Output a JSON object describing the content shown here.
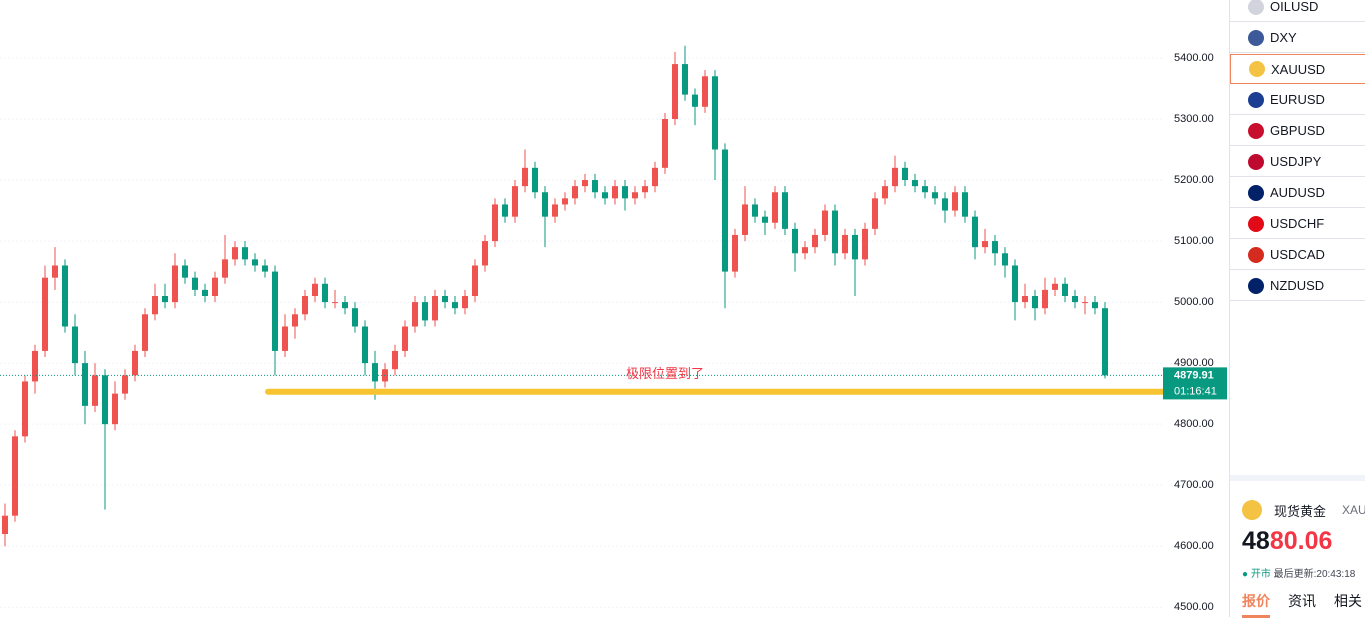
{
  "chart_data": {
    "type": "candlestick",
    "ylim": [
      4484,
      5495
    ],
    "yticks": [
      {
        "value": 4500,
        "label": "4500.00"
      },
      {
        "value": 4600,
        "label": "4600.00"
      },
      {
        "value": 4700,
        "label": "4700.00"
      },
      {
        "value": 4800,
        "label": "4800.00"
      },
      {
        "value": 4900,
        "label": "4900.00"
      },
      {
        "value": 5000,
        "label": "5000.00"
      },
      {
        "value": 5100,
        "label": "5100.00"
      },
      {
        "value": 5200,
        "label": "5200.00"
      },
      {
        "value": 5300,
        "label": "5300.00"
      },
      {
        "value": 5400,
        "label": "5400.00"
      }
    ],
    "grid": true,
    "up_color": "#ef5350",
    "down_color": "#089981",
    "ohlc": [
      [
        4620,
        4670,
        4600,
        4650
      ],
      [
        4650,
        4790,
        4640,
        4780
      ],
      [
        4780,
        4880,
        4770,
        4870
      ],
      [
        4870,
        4930,
        4850,
        4920
      ],
      [
        4920,
        5060,
        4910,
        5040
      ],
      [
        5040,
        5090,
        5020,
        5060
      ],
      [
        5060,
        5070,
        4950,
        4960
      ],
      [
        4960,
        4980,
        4880,
        4900
      ],
      [
        4900,
        4920,
        4800,
        4830
      ],
      [
        4830,
        4900,
        4820,
        4880
      ],
      [
        4880,
        4890,
        4660,
        4800
      ],
      [
        4800,
        4870,
        4790,
        4850
      ],
      [
        4850,
        4890,
        4840,
        4880
      ],
      [
        4880,
        4930,
        4870,
        4920
      ],
      [
        4920,
        4990,
        4910,
        4980
      ],
      [
        4980,
        5030,
        4970,
        5010
      ],
      [
        5010,
        5030,
        4990,
        5000
      ],
      [
        5000,
        5080,
        4990,
        5060
      ],
      [
        5060,
        5070,
        5030,
        5040
      ],
      [
        5040,
        5050,
        5010,
        5020
      ],
      [
        5020,
        5030,
        5000,
        5010
      ],
      [
        5010,
        5050,
        5000,
        5040
      ],
      [
        5040,
        5110,
        5030,
        5070
      ],
      [
        5070,
        5100,
        5060,
        5090
      ],
      [
        5090,
        5100,
        5060,
        5070
      ],
      [
        5070,
        5080,
        5050,
        5060
      ],
      [
        5060,
        5070,
        5040,
        5050
      ],
      [
        5050,
        5060,
        4880,
        4920
      ],
      [
        4920,
        4980,
        4910,
        4960
      ],
      [
        4960,
        4990,
        4940,
        4980
      ],
      [
        4980,
        5020,
        4970,
        5010
      ],
      [
        5010,
        5040,
        5000,
        5030
      ],
      [
        5030,
        5040,
        4990,
        5000
      ],
      [
        5000,
        5020,
        4990,
        5000
      ],
      [
        5000,
        5010,
        4980,
        4990
      ],
      [
        4990,
        5000,
        4950,
        4960
      ],
      [
        4960,
        4970,
        4880,
        4900
      ],
      [
        4900,
        4920,
        4840,
        4870
      ],
      [
        4870,
        4900,
        4860,
        4890
      ],
      [
        4890,
        4930,
        4880,
        4920
      ],
      [
        4920,
        4970,
        4910,
        4960
      ],
      [
        4960,
        5010,
        4950,
        5000
      ],
      [
        5000,
        5010,
        4960,
        4970
      ],
      [
        4970,
        5020,
        4960,
        5010
      ],
      [
        5010,
        5020,
        4990,
        5000
      ],
      [
        5000,
        5010,
        4980,
        4990
      ],
      [
        4990,
        5020,
        4980,
        5010
      ],
      [
        5010,
        5070,
        5000,
        5060
      ],
      [
        5060,
        5110,
        5050,
        5100
      ],
      [
        5100,
        5170,
        5090,
        5160
      ],
      [
        5160,
        5170,
        5130,
        5140
      ],
      [
        5140,
        5200,
        5130,
        5190
      ],
      [
        5190,
        5250,
        5180,
        5220
      ],
      [
        5220,
        5230,
        5170,
        5180
      ],
      [
        5180,
        5190,
        5090,
        5140
      ],
      [
        5140,
        5170,
        5130,
        5160
      ],
      [
        5160,
        5180,
        5150,
        5170
      ],
      [
        5170,
        5200,
        5160,
        5190
      ],
      [
        5190,
        5210,
        5180,
        5200
      ],
      [
        5200,
        5210,
        5170,
        5180
      ],
      [
        5180,
        5190,
        5160,
        5170
      ],
      [
        5170,
        5200,
        5160,
        5190
      ],
      [
        5190,
        5200,
        5150,
        5170
      ],
      [
        5170,
        5190,
        5160,
        5180
      ],
      [
        5180,
        5200,
        5170,
        5190
      ],
      [
        5190,
        5230,
        5180,
        5220
      ],
      [
        5220,
        5310,
        5210,
        5300
      ],
      [
        5300,
        5410,
        5290,
        5390
      ],
      [
        5390,
        5420,
        5330,
        5340
      ],
      [
        5340,
        5350,
        5290,
        5320
      ],
      [
        5320,
        5380,
        5310,
        5370
      ],
      [
        5370,
        5380,
        5200,
        5250
      ],
      [
        5250,
        5260,
        4990,
        5050
      ],
      [
        5050,
        5120,
        5040,
        5110
      ],
      [
        5110,
        5190,
        5100,
        5160
      ],
      [
        5160,
        5170,
        5130,
        5140
      ],
      [
        5140,
        5150,
        5110,
        5130
      ],
      [
        5130,
        5190,
        5120,
        5180
      ],
      [
        5180,
        5190,
        5110,
        5120
      ],
      [
        5120,
        5130,
        5050,
        5080
      ],
      [
        5080,
        5100,
        5070,
        5090
      ],
      [
        5090,
        5120,
        5080,
        5110
      ],
      [
        5110,
        5160,
        5100,
        5150
      ],
      [
        5150,
        5160,
        5060,
        5080
      ],
      [
        5080,
        5120,
        5070,
        5110
      ],
      [
        5110,
        5120,
        5010,
        5070
      ],
      [
        5070,
        5130,
        5060,
        5120
      ],
      [
        5120,
        5180,
        5110,
        5170
      ],
      [
        5170,
        5200,
        5160,
        5190
      ],
      [
        5190,
        5240,
        5180,
        5220
      ],
      [
        5220,
        5230,
        5190,
        5200
      ],
      [
        5200,
        5210,
        5180,
        5190
      ],
      [
        5190,
        5200,
        5170,
        5180
      ],
      [
        5180,
        5190,
        5160,
        5170
      ],
      [
        5170,
        5180,
        5130,
        5150
      ],
      [
        5150,
        5190,
        5140,
        5180
      ],
      [
        5180,
        5190,
        5130,
        5140
      ],
      [
        5140,
        5150,
        5070,
        5090
      ],
      [
        5090,
        5120,
        5080,
        5100
      ],
      [
        5100,
        5110,
        5060,
        5080
      ],
      [
        5080,
        5090,
        5040,
        5060
      ],
      [
        5060,
        5070,
        4970,
        5000
      ],
      [
        5000,
        5030,
        4990,
        5010
      ],
      [
        5010,
        5020,
        4970,
        4990
      ],
      [
        4990,
        5040,
        4980,
        5020
      ],
      [
        5020,
        5040,
        5010,
        5030
      ],
      [
        5030,
        5040,
        5000,
        5010
      ],
      [
        5010,
        5020,
        4990,
        5000
      ],
      [
        5000,
        5010,
        4980,
        5000
      ],
      [
        5000,
        5010,
        4980,
        4990
      ],
      [
        4990,
        5000,
        4875,
        4880
      ]
    ],
    "level_line": {
      "value": 4853,
      "color": "#f7c331"
    },
    "annotation": "极限位置到了",
    "last_price": 4879.91,
    "countdown": "01:16:41"
  },
  "watchlist": [
    "OILUSD",
    "DXY",
    "XAUUSD",
    "EURUSD",
    "GBPUSD",
    "USDJPY",
    "AUDUSD",
    "USDCHF",
    "USDCAD",
    "NZDUSD"
  ],
  "quote": {
    "name": "现货黄金",
    "symbol": "XAU",
    "price_major": "48",
    "price_minor": "80.06",
    "status": "开市",
    "updated": "最后更新:20:43:18",
    "tabs": [
      "报价",
      "资讯",
      "相关"
    ]
  }
}
